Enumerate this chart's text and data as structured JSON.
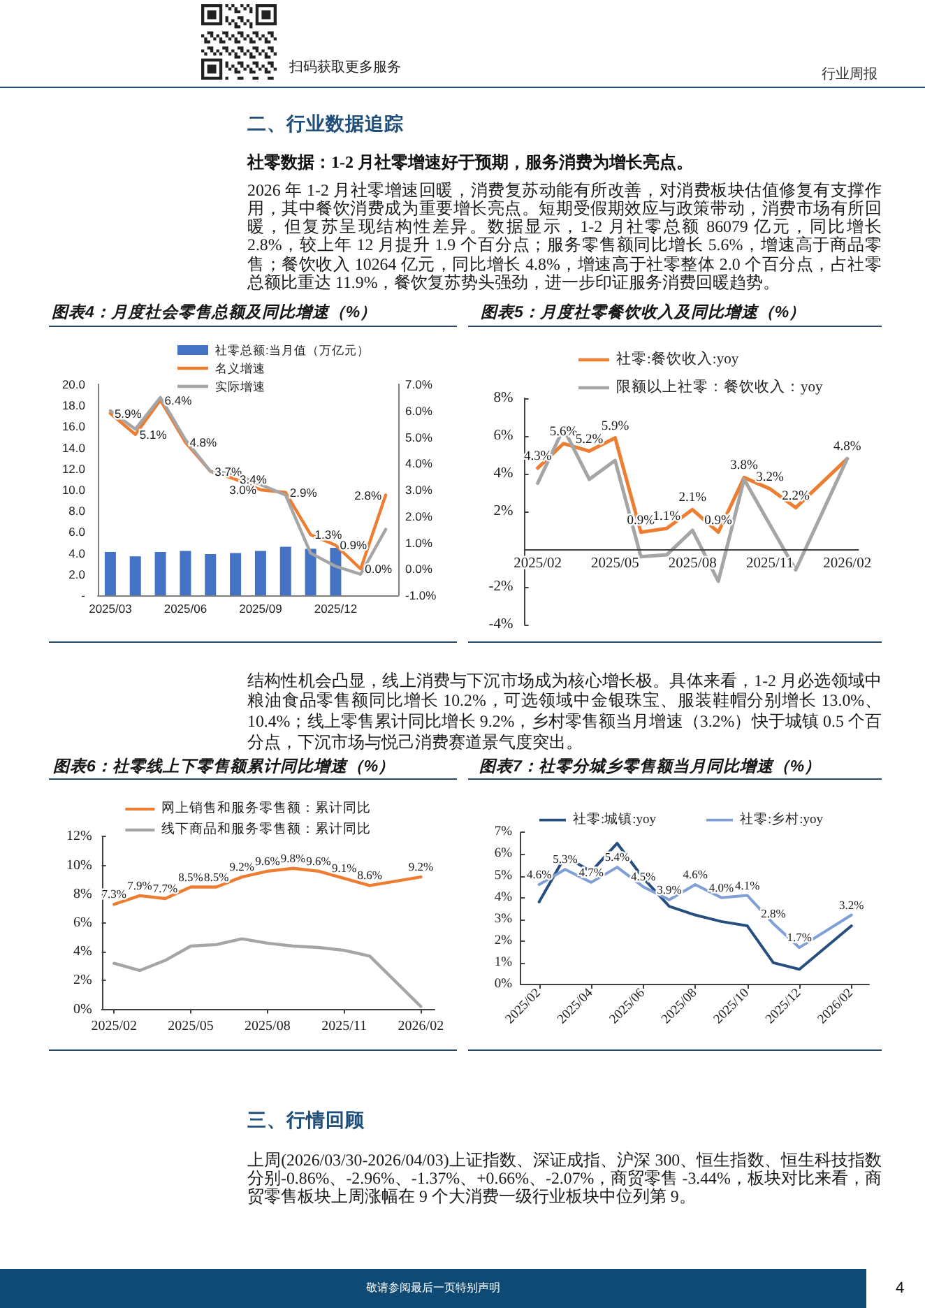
{
  "chart_data": [
    {
      "type": "other",
      "annotations": [
        "扫码获取更多服务",
        "行业周报"
      ]
    },
    {
      "type": "other",
      "title": "二、行业数据追踪",
      "subtitle": "社零数据：1-2 月社零增速好于预期，服务消费为增长亮点。",
      "annotations": [
        "2026 年 1-2 月社零增速回暖，消费复苏动能有所改善，对消费板块估值修复有支撑作用，其中餐饮消费成为重要增长亮点。短期受假期效应与政策带动，消费市场有所回暖，但复苏呈现结构性差异。数据显示，1-2 月社零总额 86079 亿元，同比增长 2.8%，较上年 12 月提升 1.9 个百分点；服务零售额同比增长 5.6%，增速高于商品零售；餐饮收入 10264 亿元，同比增长 4.8%，增速高于社零整体 2.0 个百分点，占社零总额比重达 11.9%，餐饮复苏势头强劲，进一步印证服务消费回暖趋势。"
      ]
    },
    {
      "type": "bar",
      "title": "图表4：月度社会零售总额及同比增速（%）",
      "categories": [
        "2025/03",
        null,
        null,
        "2025/06",
        null,
        null,
        "2025/09",
        null,
        null,
        "2025/12",
        null,
        null
      ],
      "series": [
        {
          "name": "社零总额:当月值（万亿元）",
          "color": "#4472c4",
          "values": [
            4.1,
            3.7,
            4.1,
            4.2,
            3.9,
            4.0,
            4.2,
            4.6,
            4.4,
            4.5,
            null,
            null
          ]
        },
        {
          "type": "line",
          "name": "名义增速",
          "axis": "y2",
          "color": "#ed7d31",
          "values": [
            5.9,
            5.1,
            6.4,
            4.8,
            3.7,
            3.4,
            3.0,
            2.9,
            1.3,
            0.9,
            0.0,
            2.8
          ],
          "value_labels": [
            "5.9%",
            "5.1%",
            "6.4%",
            "4.8%",
            "3.7%",
            "3.4%",
            "3.0%",
            "2.9%",
            "1.3%",
            "0.9%",
            "0.0%",
            "2.8%"
          ]
        },
        {
          "type": "line",
          "name": "实际增速",
          "axis": "y2",
          "color": "#a5a5a5",
          "values": [
            6.0,
            5.3,
            6.5,
            4.9,
            3.7,
            3.6,
            3.2,
            2.8,
            0.6,
            0.1,
            -0.2,
            1.5
          ]
        }
      ],
      "ylim": [
        0,
        20
      ],
      "yticks": [
        {
          "value": 0,
          "label": "-"
        },
        {
          "value": 2,
          "label": "2.0"
        },
        {
          "value": 4,
          "label": "4.0"
        },
        {
          "value": 6,
          "label": "6.0"
        },
        {
          "value": 8,
          "label": "8.0"
        },
        {
          "value": 10,
          "label": "10.0"
        },
        {
          "value": 12,
          "label": "12.0"
        },
        {
          "value": 14,
          "label": "14.0"
        },
        {
          "value": 16,
          "label": "16.0"
        },
        {
          "value": 18,
          "label": "18.0"
        },
        {
          "value": 20,
          "label": "20.0"
        }
      ],
      "y2lim": [
        -1,
        7
      ],
      "y2ticks": [
        {
          "value": -1,
          "label": "-1.0%"
        },
        {
          "value": 0,
          "label": "0.0%"
        },
        {
          "value": 1,
          "label": "1.0%"
        },
        {
          "value": 2,
          "label": "2.0%"
        },
        {
          "value": 3,
          "label": "3.0%"
        },
        {
          "value": 4,
          "label": "4.0%"
        },
        {
          "value": 5,
          "label": "5.0%"
        },
        {
          "value": 6,
          "label": "6.0%"
        },
        {
          "value": 7,
          "label": "7.0%"
        }
      ],
      "legend": "top"
    },
    {
      "type": "line",
      "title": "图表5：月度社零餐饮收入及同比增速（%）",
      "x": [
        "2025-02",
        "2025-03",
        "2025-04",
        "2025-05",
        "2025-06",
        "2025-07",
        "2025-08",
        "2025-09",
        "2025-10",
        "2025-11",
        "2025-12",
        "2026-02"
      ],
      "series": [
        {
          "name": "社零:餐饮收入:yoy",
          "color": "#ed7d31",
          "values": [
            4.3,
            5.6,
            5.2,
            5.9,
            0.9,
            1.1,
            2.1,
            0.9,
            3.8,
            3.2,
            2.2,
            4.8
          ],
          "value_labels": [
            "4.3%",
            "5.6%",
            "5.2%",
            "5.9%",
            "0.9%",
            "1.1%",
            "2.1%",
            "0.9%",
            "3.8%",
            "3.2%",
            "2.2%",
            "4.8%"
          ]
        },
        {
          "name": "限额以上社零：餐饮收入：yoy",
          "color": "#a5a5a5",
          "values": [
            3.5,
            6.4,
            3.7,
            4.7,
            -0.4,
            -0.3,
            1.0,
            -1.7,
            3.7,
            1.3,
            -1.1,
            4.8
          ]
        }
      ],
      "xlim": [
        "2025-01-16",
        "2026-02-13"
      ],
      "xticks": [
        {
          "value": "2025-02",
          "label": "2025/02"
        },
        {
          "value": "2025-05",
          "label": "2025/05"
        },
        {
          "value": "2025-08",
          "label": "2025/08"
        },
        {
          "value": "2025-11",
          "label": "2025/11"
        },
        {
          "value": "2026-02",
          "label": "2026/02"
        }
      ],
      "ylim": [
        -4,
        8
      ],
      "yticks": [
        {
          "value": -4,
          "label": "-4%"
        },
        {
          "value": -2,
          "label": "-2%"
        },
        {
          "value": 0,
          "label": null
        },
        {
          "value": 2,
          "label": "2%"
        },
        {
          "value": 4,
          "label": "4%"
        },
        {
          "value": 6,
          "label": "6%"
        },
        {
          "value": 8,
          "label": "8%"
        }
      ],
      "legend": "top"
    },
    {
      "type": "other",
      "annotations": [
        "结构性机会凸显，线上消费与下沉市场成为核心增长极。具体来看，1-2 月必选领域中粮油食品零售额同比增长 10.2%，可选领域中金银珠宝、服装鞋帽分别增长 13.0%、10.4%；线上零售累计同比增长 9.2%，乡村零售额当月增速（3.2%）快于城镇 0.5 个百分点，下沉市场与悦己消费赛道景气度突出。"
      ]
    },
    {
      "type": "line",
      "title": "图表6：社零线上下零售额累计同比增速（%）",
      "x": [
        "2025-02",
        "2025-03",
        "2025-04",
        "2025-05",
        "2025-06",
        "2025-07",
        "2025-08",
        "2025-09",
        "2025-10",
        "2025-11",
        "2025-12",
        "2026-02"
      ],
      "series": [
        {
          "name": "网上销售和服务零售额：累计同比",
          "color": "#ed7d31",
          "values": [
            7.3,
            7.9,
            7.7,
            8.5,
            8.5,
            9.2,
            9.6,
            9.8,
            9.6,
            9.1,
            8.6,
            9.2
          ],
          "value_labels": [
            "7.3%",
            "7.9%",
            "7.7%",
            "8.5%",
            "8.5%",
            "9.2%",
            "9.6%",
            "9.8%",
            "9.6%",
            "9.1%",
            "8.6%",
            "9.2%"
          ]
        },
        {
          "name": "线下商品和服务零售额：累计同比",
          "color": "#a5a5a5",
          "values": [
            3.2,
            2.7,
            3.4,
            4.4,
            4.5,
            4.9,
            4.6,
            4.4,
            4.3,
            4.1,
            3.7,
            0.2
          ]
        }
      ],
      "xlim": [
        "2025-01-17",
        "2026-02-16"
      ],
      "xticks": [
        {
          "value": "2025-02",
          "label": "2025/02"
        },
        {
          "value": "2025-05",
          "label": "2025/05"
        },
        {
          "value": "2025-08",
          "label": "2025/08"
        },
        {
          "value": "2025-11",
          "label": "2025/11"
        },
        {
          "value": "2026-02",
          "label": "2026/02"
        }
      ],
      "ylim": [
        0,
        12
      ],
      "yticks": [
        {
          "value": 0,
          "label": "0%"
        },
        {
          "value": 2,
          "label": "2%"
        },
        {
          "value": 4,
          "label": "4%"
        },
        {
          "value": 6,
          "label": "6%"
        },
        {
          "value": 8,
          "label": "8%"
        },
        {
          "value": 10,
          "label": "10%"
        },
        {
          "value": 12,
          "label": "12%"
        }
      ],
      "legend": "top"
    },
    {
      "type": "line",
      "title": "图表7：社零分城乡零售额当月同比增速（%）",
      "x": [
        "2025-02",
        "2025-03",
        "2025-04",
        "2025-05",
        "2025-06",
        "2025-07",
        "2025-08",
        "2025-09",
        "2025-10",
        "2025-11",
        "2025-12",
        "2026-02"
      ],
      "series": [
        {
          "name": "社零:城镇:yoy",
          "color": "#264f7f",
          "values": [
            3.8,
            5.9,
            5.2,
            6.5,
            4.9,
            3.6,
            3.2,
            2.9,
            2.7,
            1.0,
            0.7,
            2.7
          ]
        },
        {
          "name": "社零:乡村:yoy",
          "color": "#7f9fd6",
          "values": [
            4.6,
            5.3,
            4.7,
            5.4,
            4.5,
            3.9,
            4.6,
            4.0,
            4.1,
            2.8,
            1.7,
            3.2
          ],
          "value_labels": [
            "4.6%",
            "5.3%",
            "4.7%",
            "5.4%",
            "4.5%",
            "3.9%",
            "4.6%",
            "4.0%",
            "4.1%",
            "2.8%",
            "1.7%",
            "3.2%"
          ]
        }
      ],
      "xlim": [
        "2025-01-10",
        "2026-02-20"
      ],
      "xticks": [
        {
          "value": "2025-02",
          "label": "2025/02"
        },
        {
          "value": "2025-04",
          "label": "2025/04"
        },
        {
          "value": "2025-06",
          "label": "2025/06"
        },
        {
          "value": "2025-08",
          "label": "2025/08"
        },
        {
          "value": "2025-10",
          "label": "2025/10"
        },
        {
          "value": "2025-12",
          "label": "2025/12"
        },
        {
          "value": "2026-02",
          "label": "2026/02"
        }
      ],
      "ylim": [
        0,
        7
      ],
      "yticks": [
        {
          "value": 0,
          "label": "0%"
        },
        {
          "value": 1,
          "label": "1%"
        },
        {
          "value": 2,
          "label": "2%"
        },
        {
          "value": 3,
          "label": "3%"
        },
        {
          "value": 4,
          "label": "4%"
        },
        {
          "value": 5,
          "label": "5%"
        },
        {
          "value": 6,
          "label": "6%"
        },
        {
          "value": 7,
          "label": "7%"
        }
      ],
      "legend": "top"
    },
    {
      "type": "other",
      "title": "三、行情回顾",
      "annotations": [
        "上周(2026/03/30-2026/04/03)上证指数、深证成指、沪深 300、恒生指数、恒生科技指数分别-0.86%、-2.96%、-1.37%、+0.66%、-2.07%，商贸零售 -3.44%，板块对比来看，商贸零售板块上周涨幅在 9 个大消费一级行业板块中位列第 9。"
      ]
    },
    {
      "type": "other",
      "annotations": [
        "敬请参阅最后一页特别声明",
        "4"
      ]
    }
  ]
}
